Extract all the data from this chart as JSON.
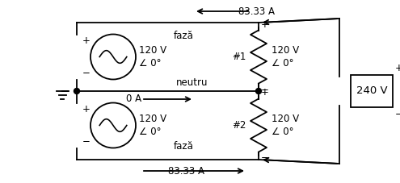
{
  "bg_color": "#ffffff",
  "line_color": "#000000",
  "font_size": 8.5,
  "labels": {
    "faza_top": "fază",
    "faza_bot": "fază",
    "neutru": "neutru",
    "current_top": "83.33 A",
    "current_bot": "83.33 A",
    "current_mid": "0 A",
    "hash1": "#1",
    "hash2": "#2",
    "v240": "240 V",
    "source_v": "120 V",
    "source_angle": "∠ 0°",
    "load_v": "120 V",
    "load_angle": "∠ 0°"
  }
}
